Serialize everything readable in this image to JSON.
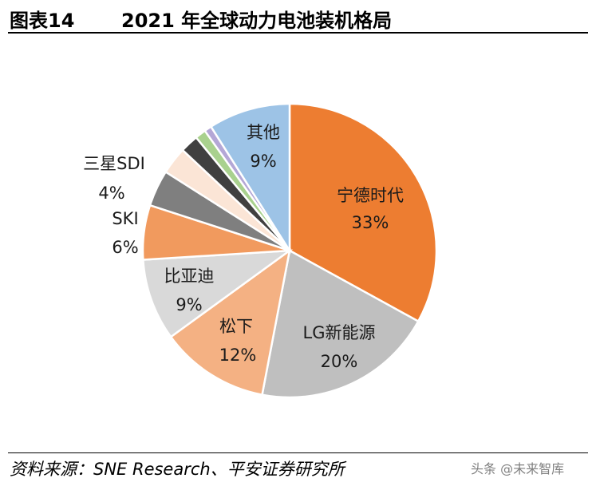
{
  "header": {
    "figure_label": "图表14",
    "title": "2021 年全球动力电池装机格局"
  },
  "footer": {
    "source": "资料来源：SNE Research、平安证券研究所",
    "watermark": "头条 @未来智库"
  },
  "chart_data": {
    "type": "pie",
    "title": "2021 年全球动力电池装机格局",
    "slices": [
      {
        "name": "宁德时代",
        "value": 33,
        "label": "33%",
        "color": "#ED7D31",
        "show_label": true
      },
      {
        "name": "LG新能源",
        "value": 20,
        "label": "20%",
        "color": "#BFBFBF",
        "show_label": true
      },
      {
        "name": "松下",
        "value": 12,
        "label": "12%",
        "color": "#F4B183",
        "show_label": true
      },
      {
        "name": "比亚迪",
        "value": 9,
        "label": "9%",
        "color": "#D9D9D9",
        "show_label": true
      },
      {
        "name": "SKI",
        "value": 6,
        "label": "6%",
        "color": "#F19A5E",
        "show_label": true
      },
      {
        "name": "三星SDI",
        "value": 4,
        "label": "4%",
        "color": "#7F7F7F",
        "show_label": true
      },
      {
        "name": "",
        "value": 3,
        "label": "",
        "color": "#FBE5D6",
        "show_label": false
      },
      {
        "name": "",
        "value": 2,
        "label": "",
        "color": "#404040",
        "show_label": false
      },
      {
        "name": "",
        "value": 1.2,
        "label": "",
        "color": "#A9D18E",
        "show_label": false
      },
      {
        "name": "",
        "value": 0.8,
        "label": "",
        "color": "#B4A7D6",
        "show_label": false
      },
      {
        "name": "其他",
        "value": 9,
        "label": "9%",
        "color": "#9DC3E6",
        "show_label": true
      }
    ]
  }
}
